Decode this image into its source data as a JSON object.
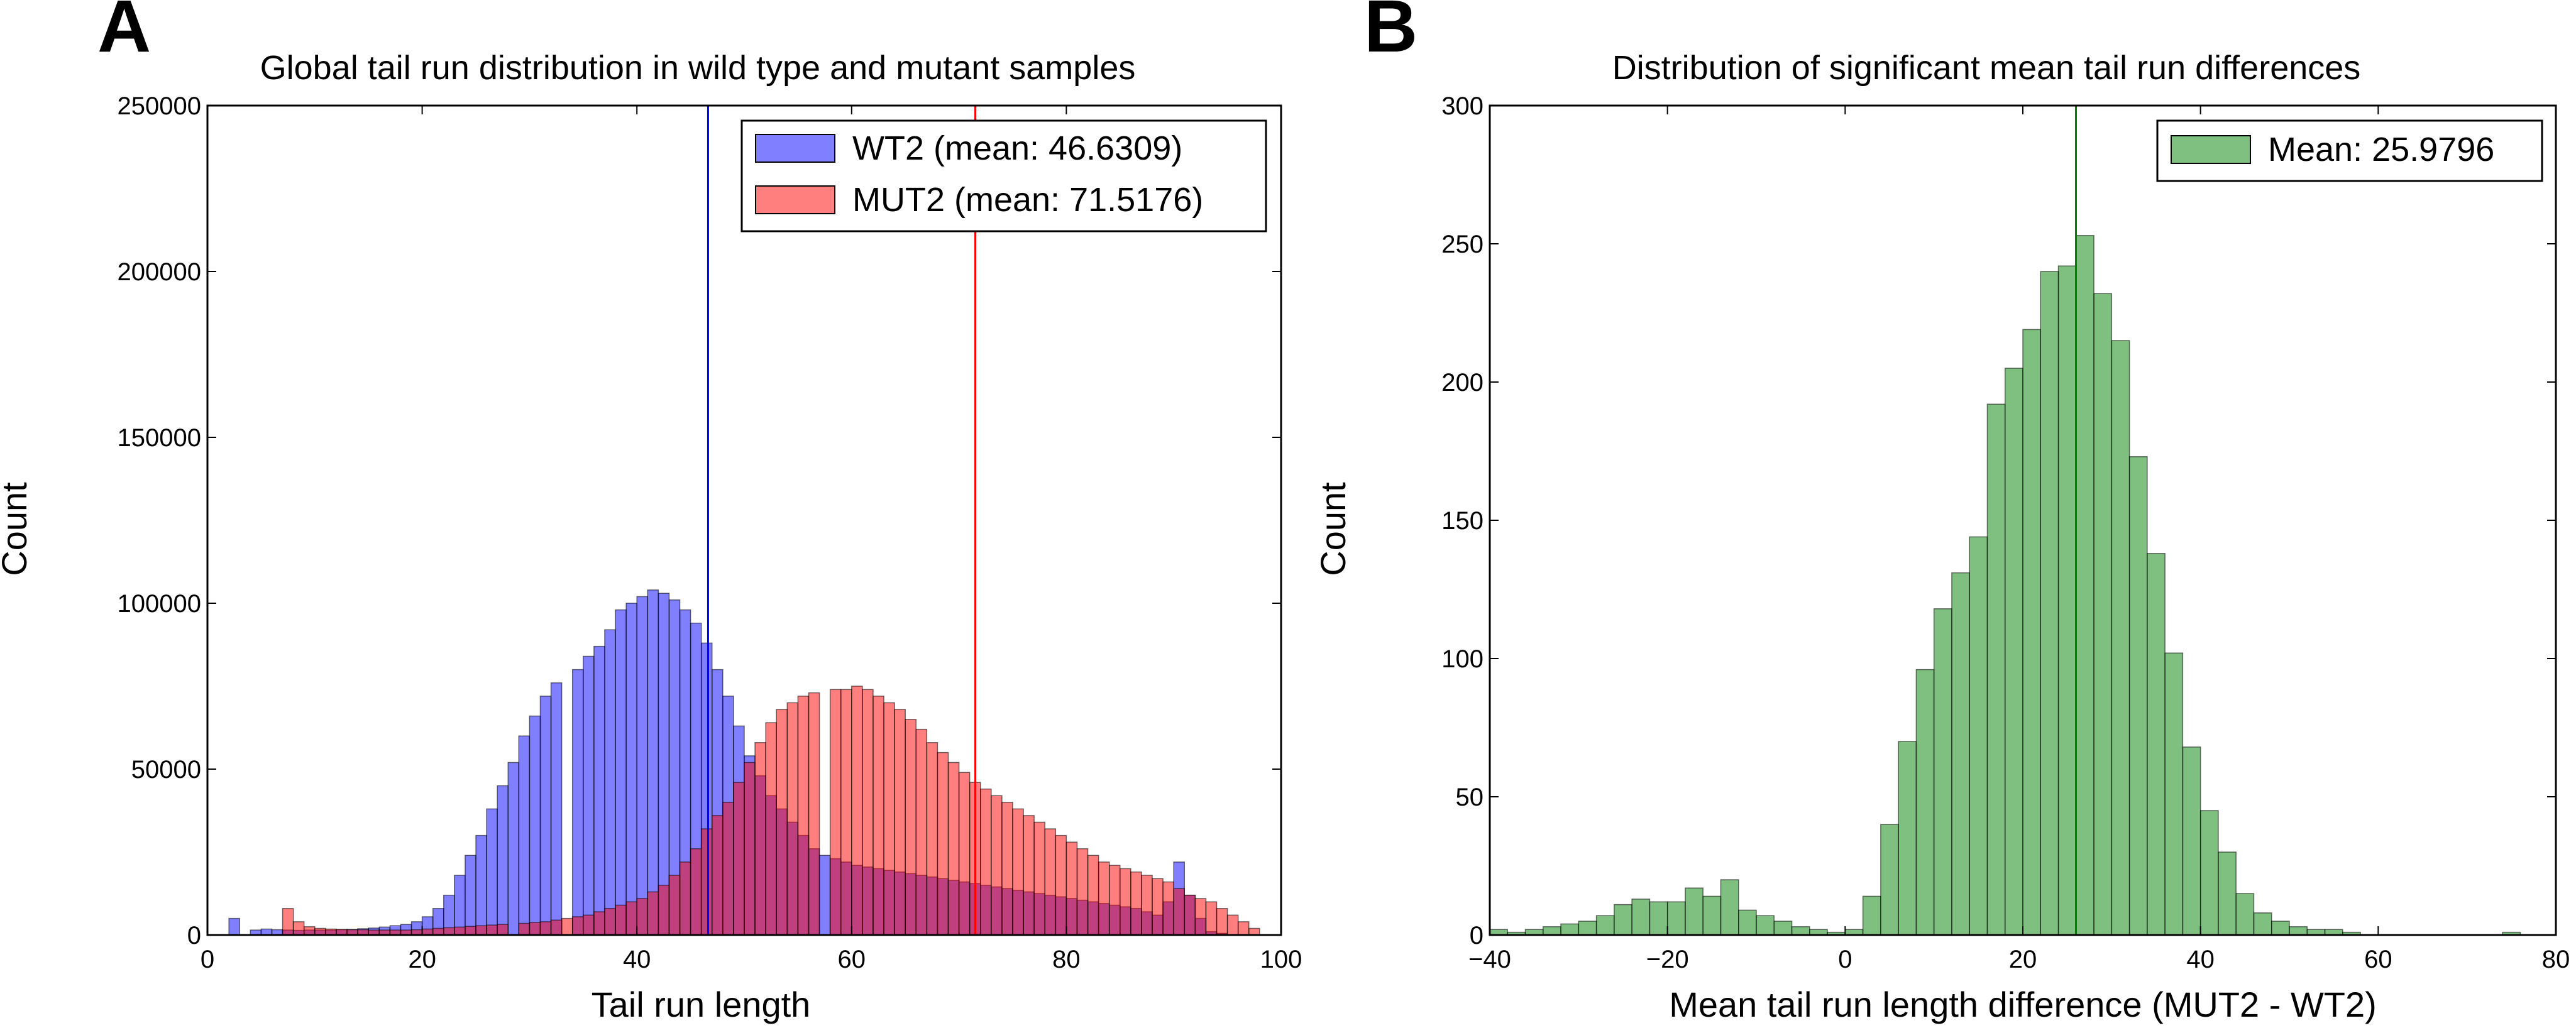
{
  "chart_data": [
    {
      "type": "bar",
      "panel_letter": "A",
      "title": "Global tail run distribution in wild type and mutant samples",
      "xlabel": "Tail run length",
      "ylabel": "Count",
      "xlim": [
        0,
        100
      ],
      "ylim": [
        0,
        250000
      ],
      "xticks": [
        0,
        20,
        40,
        60,
        80,
        100
      ],
      "yticks": [
        0,
        50000,
        100000,
        150000,
        200000,
        250000
      ],
      "grid": false,
      "legend_position": "top-right",
      "bin_width": 1,
      "bin_starts": [
        2,
        3,
        4,
        5,
        6,
        7,
        8,
        9,
        10,
        11,
        12,
        13,
        14,
        15,
        16,
        17,
        18,
        19,
        20,
        21,
        22,
        23,
        24,
        25,
        26,
        27,
        28,
        29,
        30,
        31,
        32,
        33,
        34,
        35,
        36,
        37,
        38,
        39,
        40,
        41,
        42,
        43,
        44,
        45,
        46,
        47,
        48,
        49,
        50,
        51,
        52,
        53,
        54,
        55,
        56,
        57,
        58,
        59,
        60,
        61,
        62,
        63,
        64,
        65,
        66,
        67,
        68,
        69,
        70,
        71,
        72,
        73,
        74,
        75,
        76,
        77,
        78,
        79,
        80,
        81,
        82,
        83,
        84,
        85,
        86,
        87,
        88,
        89,
        90,
        91,
        92,
        93,
        94,
        95,
        96,
        97
      ],
      "series": [
        {
          "name": "WT2 (mean: 46.6309)",
          "color": "#0000ff",
          "mean": 46.6309,
          "values": [
            5000,
            0,
            1500,
            1800,
            1600,
            1500,
            1400,
            1500,
            1500,
            1500,
            1600,
            1700,
            1900,
            2100,
            2400,
            2800,
            3200,
            4000,
            5500,
            8000,
            12000,
            18000,
            24000,
            30000,
            38000,
            45000,
            52000,
            60000,
            66000,
            72000,
            76000,
            0,
            80000,
            84000,
            87000,
            92000,
            98000,
            100000,
            102000,
            104000,
            103000,
            101000,
            98000,
            94000,
            88000,
            80000,
            72000,
            63000,
            54000,
            48000,
            42000,
            38000,
            34000,
            30000,
            26000,
            24000,
            23000,
            22000,
            21000,
            20500,
            20000,
            19500,
            19000,
            18500,
            18000,
            17500,
            17000,
            16500,
            16000,
            15500,
            15000,
            14500,
            14000,
            13500,
            13000,
            12500,
            12000,
            11500,
            11000,
            10500,
            10000,
            9500,
            9000,
            8500,
            8000,
            7000,
            6000,
            10000,
            22000,
            12000,
            5000,
            1000,
            500,
            0,
            0,
            0
          ]
        },
        {
          "name": "MUT2 (mean: 71.5176)",
          "color": "#ff0000",
          "mean": 71.5176,
          "values": [
            0,
            0,
            0,
            0,
            0,
            8000,
            4000,
            2500,
            2000,
            1800,
            1700,
            1600,
            1600,
            1500,
            1500,
            1500,
            1500,
            1600,
            1800,
            2000,
            2200,
            2400,
            2600,
            2800,
            3000,
            3200,
            0,
            3500,
            3800,
            4000,
            4500,
            5000,
            5500,
            6000,
            7000,
            8000,
            9000,
            10000,
            11000,
            13000,
            15000,
            18000,
            22000,
            26000,
            32000,
            36000,
            40000,
            46000,
            52000,
            58000,
            64000,
            68000,
            70000,
            72000,
            73000,
            0,
            74000,
            74000,
            75000,
            74000,
            72000,
            70000,
            68000,
            65000,
            62000,
            58000,
            55000,
            52000,
            49000,
            46000,
            44000,
            42000,
            40000,
            38000,
            36000,
            34000,
            32000,
            30000,
            28000,
            26000,
            24000,
            22000,
            21000,
            20000,
            19000,
            18000,
            17000,
            16000,
            14000,
            12000,
            11000,
            10000,
            8000,
            6000,
            4000,
            2000
          ]
        }
      ]
    },
    {
      "type": "bar",
      "panel_letter": "B",
      "title": "Distribution of significant mean tail run differences",
      "xlabel": "Mean tail run length difference (MUT2 - WT2)",
      "ylabel": "Count",
      "xlim": [
        -40,
        80
      ],
      "ylim": [
        0,
        300
      ],
      "xticks": [
        -40,
        -20,
        0,
        20,
        40,
        60,
        80
      ],
      "yticks": [
        0,
        50,
        100,
        150,
        200,
        250,
        300
      ],
      "grid": false,
      "legend_position": "top-right",
      "bin_width": 2,
      "bin_starts": [
        -40,
        -38,
        -36,
        -34,
        -32,
        -30,
        -28,
        -26,
        -24,
        -22,
        -20,
        -18,
        -16,
        -14,
        -12,
        -10,
        -8,
        -6,
        -4,
        -2,
        0,
        2,
        4,
        6,
        8,
        10,
        12,
        14,
        16,
        18,
        20,
        22,
        24,
        26,
        28,
        30,
        32,
        34,
        36,
        38,
        40,
        42,
        44,
        46,
        48,
        50,
        52,
        54,
        56,
        58,
        60,
        62,
        64,
        66,
        68,
        70,
        72,
        74
      ],
      "series": [
        {
          "name": "Mean: 25.9796",
          "color": "#008000",
          "mean": 25.9796,
          "values": [
            2,
            1,
            2,
            3,
            4,
            5,
            7,
            11,
            13,
            12,
            12,
            17,
            14,
            20,
            9,
            7,
            5,
            3,
            2,
            1,
            2,
            14,
            40,
            70,
            96,
            118,
            131,
            144,
            192,
            205,
            219,
            240,
            242,
            253,
            232,
            215,
            173,
            138,
            102,
            68,
            45,
            30,
            15,
            8,
            5,
            3,
            2,
            2,
            1,
            0,
            0,
            0,
            0,
            0,
            0,
            0,
            0,
            1
          ]
        }
      ]
    }
  ]
}
